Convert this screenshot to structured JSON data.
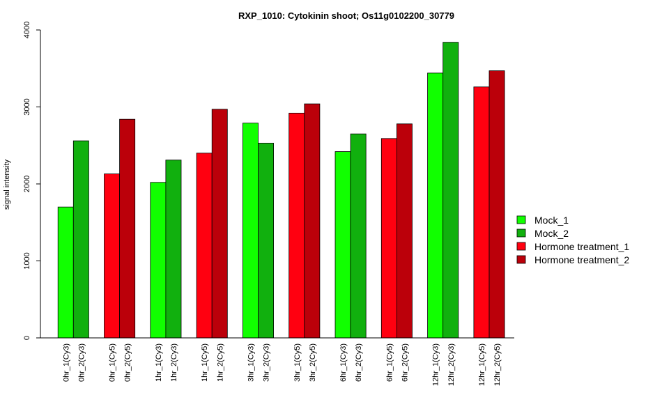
{
  "chart_data": {
    "type": "bar",
    "title": "RXP_1010: Cytokinin shoot; Os11g0102200_30779",
    "xlabel": "",
    "ylabel": "signal intensity",
    "ylim": [
      0,
      4000
    ],
    "yticks": [
      0,
      1000,
      2000,
      3000,
      4000
    ],
    "grid": false,
    "legend_position": "right",
    "groups": [
      {
        "bars": [
          {
            "label": "0hr_1(Cy3)",
            "series": "Mock_1",
            "value": 1700
          },
          {
            "label": "0hr_2(Cy3)",
            "series": "Mock_2",
            "value": 2560
          }
        ]
      },
      {
        "bars": [
          {
            "label": "0hr_1(Cy5)",
            "series": "Hormone treatment_1",
            "value": 2130
          },
          {
            "label": "0hr_2(Cy5)",
            "series": "Hormone treatment_2",
            "value": 2840
          }
        ]
      },
      {
        "bars": [
          {
            "label": "1hr_1(Cy3)",
            "series": "Mock_1",
            "value": 2020
          },
          {
            "label": "1hr_2(Cy3)",
            "series": "Mock_2",
            "value": 2310
          }
        ]
      },
      {
        "bars": [
          {
            "label": "1hr_1(Cy5)",
            "series": "Hormone treatment_1",
            "value": 2400
          },
          {
            "label": "1hr_2(Cy5)",
            "series": "Hormone treatment_2",
            "value": 2970
          }
        ]
      },
      {
        "bars": [
          {
            "label": "3hr_1(Cy3)",
            "series": "Mock_1",
            "value": 2790
          },
          {
            "label": "3hr_2(Cy3)",
            "series": "Mock_2",
            "value": 2530
          }
        ]
      },
      {
        "bars": [
          {
            "label": "3hr_1(Cy5)",
            "series": "Hormone treatment_1",
            "value": 2920
          },
          {
            "label": "3hr_2(Cy5)",
            "series": "Hormone treatment_2",
            "value": 3040
          }
        ]
      },
      {
        "bars": [
          {
            "label": "6hr_1(Cy3)",
            "series": "Mock_1",
            "value": 2420
          },
          {
            "label": "6hr_2(Cy3)",
            "series": "Mock_2",
            "value": 2650
          }
        ]
      },
      {
        "bars": [
          {
            "label": "6hr_1(Cy5)",
            "series": "Hormone treatment_1",
            "value": 2590
          },
          {
            "label": "6hr_2(Cy5)",
            "series": "Hormone treatment_2",
            "value": 2780
          }
        ]
      },
      {
        "bars": [
          {
            "label": "12hr_1(Cy3)",
            "series": "Mock_1",
            "value": 3440
          },
          {
            "label": "12hr_2(Cy3)",
            "series": "Mock_2",
            "value": 3840
          }
        ]
      },
      {
        "bars": [
          {
            "label": "12hr_1(Cy5)",
            "series": "Hormone treatment_1",
            "value": 3260
          },
          {
            "label": "12hr_2(Cy5)",
            "series": "Hormone treatment_2",
            "value": 3470
          }
        ]
      }
    ],
    "legend": [
      {
        "name": "Mock_1",
        "color": "#11ff00"
      },
      {
        "name": "Mock_2",
        "color": "#11b00e"
      },
      {
        "name": "Hormone treatment_1",
        "color": "#ff0010"
      },
      {
        "name": "Hormone treatment_2",
        "color": "#bb000a"
      }
    ]
  }
}
